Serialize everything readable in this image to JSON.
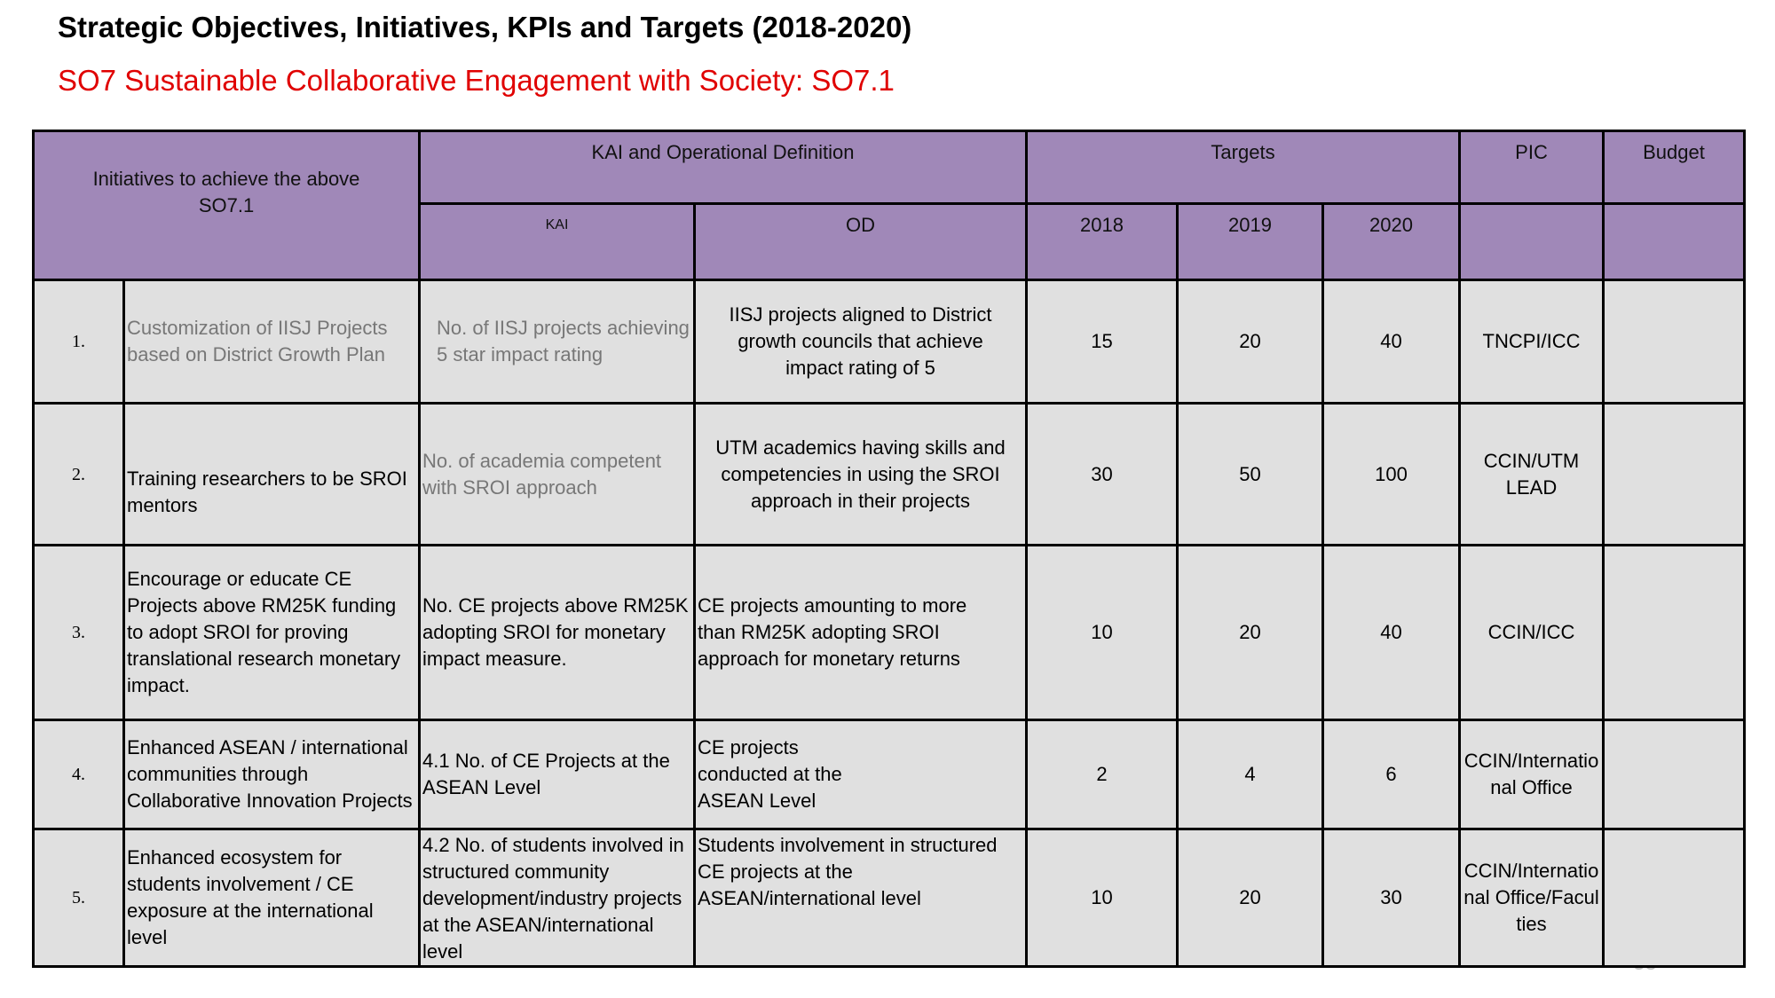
{
  "title": "Strategic Objectives, Initiatives, KPIs and Targets (2018-2020)",
  "subtitle": "SO7 Sustainable Collaborative Engagement with Society: SO7.1",
  "page_number": "38",
  "header": {
    "initiatives": "Initiatives to achieve the above SO7.1",
    "kai_od": "KAI and Operational Definition",
    "targets": "Targets",
    "pic": "PIC",
    "budget": "Budget",
    "kai": "KAI",
    "od": "OD",
    "y2018": "2018",
    "y2019": "2019",
    "y2020": "2020"
  },
  "rows": [
    {
      "no": "1.",
      "initiative": "Customization of IISJ Projects based on District Growth Plan",
      "kai": "No. of IISJ projects achieving 5 star impact rating",
      "od": "IISJ projects  aligned to District growth councils that achieve impact rating of 5",
      "t2018": "15",
      "t2019": "20",
      "t2020": "40",
      "pic": "TNCPI/ICC",
      "budget": ""
    },
    {
      "no": "2.",
      "initiative": "Training researchers to be  SROI mentors",
      "kai": "No. of academia competent with SROI approach",
      "od": "UTM academics having skills and competencies in using the SROI approach in their projects",
      "t2018": "30",
      "t2019": "50",
      "t2020": "100",
      "pic": "CCIN/UTM LEAD",
      "budget": ""
    },
    {
      "no": "3.",
      "initiative": "Encourage or educate CE Projects above RM25K funding to adopt SROI for proving translational research monetary impact.",
      "kai": "No. CE projects above RM25K adopting SROI for monetary impact measure.",
      "od": "CE projects amounting to more than RM25K adopting SROI approach for monetary returns",
      "t2018": "10",
      "t2019": "20",
      "t2020": "40",
      "pic": "CCIN/ICC",
      "budget": ""
    },
    {
      "no": "4.",
      "initiative": "Enhanced ASEAN / international communities through Collaborative Innovation Projects",
      "kai": "4.1 No. of CE Projects at the ASEAN Level",
      "od": "CE projects conducted at the ASEAN Level",
      "t2018": "2",
      "t2019": "4",
      "t2020": "6",
      "pic": "CCIN/International Office",
      "budget": ""
    },
    {
      "no": "5.",
      "initiative": "Enhanced ecosystem for students involvement / CE exposure at the international level",
      "kai": "4.2 No. of students involved in structured community development/industry projects at the ASEAN/international level",
      "od": "Students involvement in structured CE projects at the ASEAN/international level",
      "t2018": "10",
      "t2019": "20",
      "t2020": "30",
      "pic": "CCIN/International Office/Faculties",
      "budget": ""
    }
  ]
}
